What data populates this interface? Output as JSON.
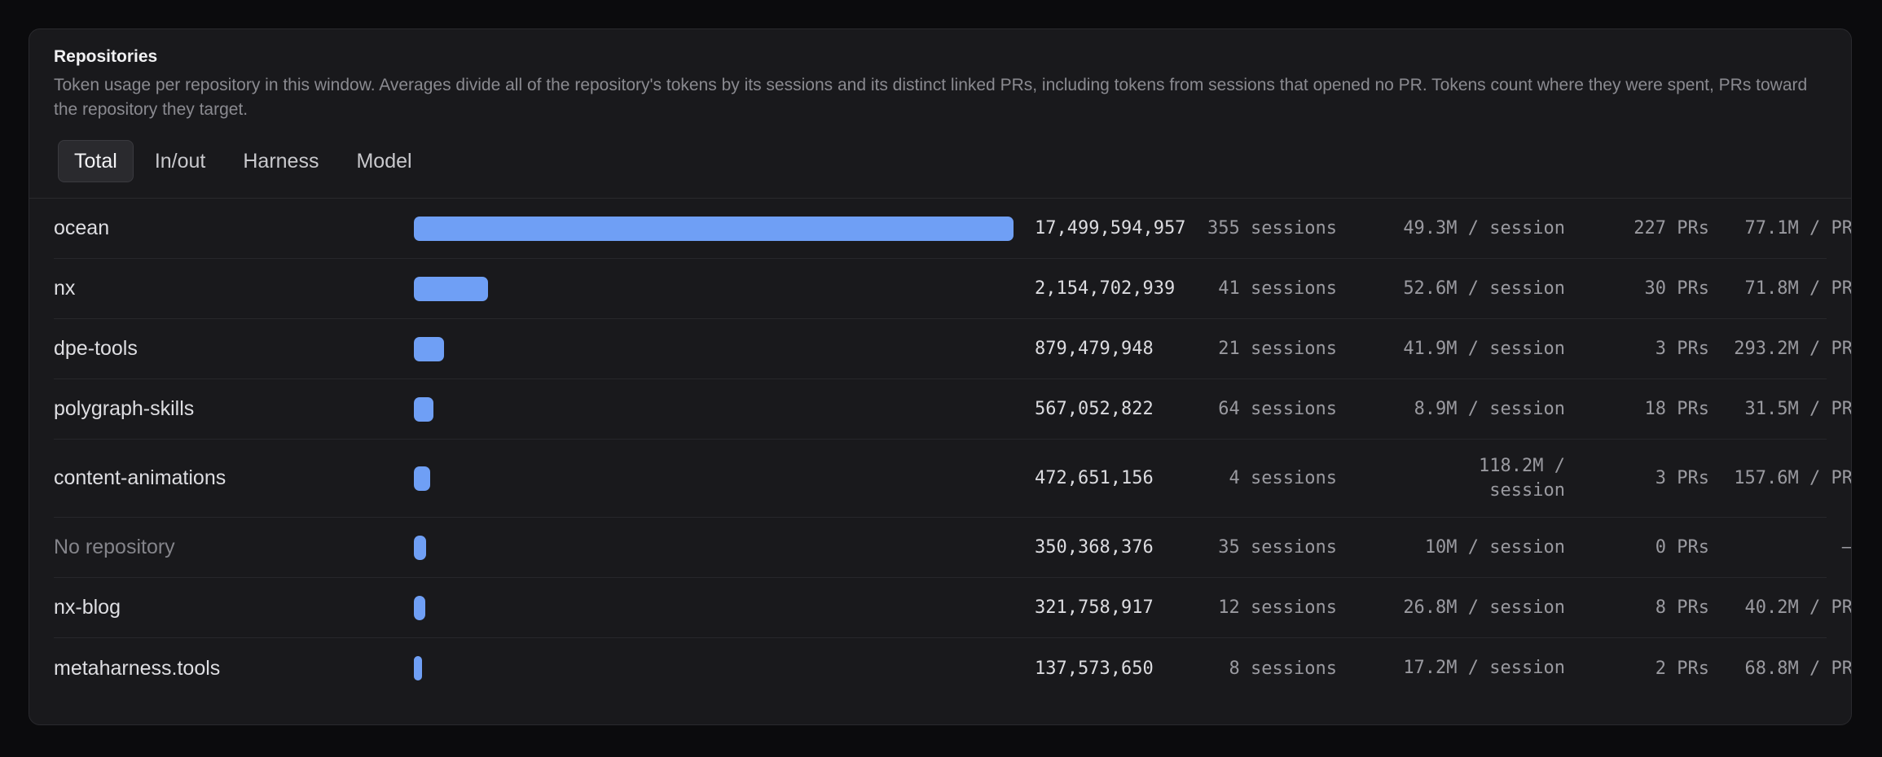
{
  "panel": {
    "title": "Repositories",
    "description": "Token usage per repository in this window. Averages divide all of the repository's tokens by its sessions and its distinct linked PRs, including tokens from sessions that opened no PR. Tokens count where they were spent, PRs toward the repository they target."
  },
  "tabs": [
    {
      "label": "Total",
      "active": true
    },
    {
      "label": "In/out",
      "active": false
    },
    {
      "label": "Harness",
      "active": false
    },
    {
      "label": "Model",
      "active": false
    }
  ],
  "colors": {
    "bar": "#6f9ff5",
    "background": "#19191c"
  },
  "rows": [
    {
      "name": "ocean",
      "tokens": "17,499,594,957",
      "token_value": 17499594957,
      "sessions": "355 sessions",
      "per_session": "49.3M / session",
      "prs": "227 PRs",
      "per_pr": "77.1M / PR"
    },
    {
      "name": "nx",
      "tokens": "2,154,702,939",
      "token_value": 2154702939,
      "sessions": "41 sessions",
      "per_session": "52.6M / session",
      "prs": "30 PRs",
      "per_pr": "71.8M / PR"
    },
    {
      "name": "dpe-tools",
      "tokens": "879,479,948",
      "token_value": 879479948,
      "sessions": "21 sessions",
      "per_session": "41.9M / session",
      "prs": "3 PRs",
      "per_pr": "293.2M / PR"
    },
    {
      "name": "polygraph-skills",
      "tokens": "567,052,822",
      "token_value": 567052822,
      "sessions": "64 sessions",
      "per_session": "8.9M / session",
      "prs": "18 PRs",
      "per_pr": "31.5M / PR"
    },
    {
      "name": "content-animations",
      "tokens": "472,651,156",
      "token_value": 472651156,
      "sessions": "4 sessions",
      "per_session": "118.2M / session",
      "prs": "3 PRs",
      "per_pr": "157.6M / PR"
    },
    {
      "name": "No repository",
      "tokens": "350,368,376",
      "token_value": 350368376,
      "sessions": "35 sessions",
      "per_session": "10M / session",
      "prs": "0 PRs",
      "per_pr": "—",
      "muted": true
    },
    {
      "name": "nx-blog",
      "tokens": "321,758,917",
      "token_value": 321758917,
      "sessions": "12 sessions",
      "per_session": "26.8M / session",
      "prs": "8 PRs",
      "per_pr": "40.2M / PR"
    },
    {
      "name": "metaharness.tools",
      "tokens": "137,573,650",
      "token_value": 137573650,
      "sessions": "8 sessions",
      "per_session": "17.2M / session",
      "prs": "2 PRs",
      "per_pr": "68.8M / PR"
    }
  ]
}
